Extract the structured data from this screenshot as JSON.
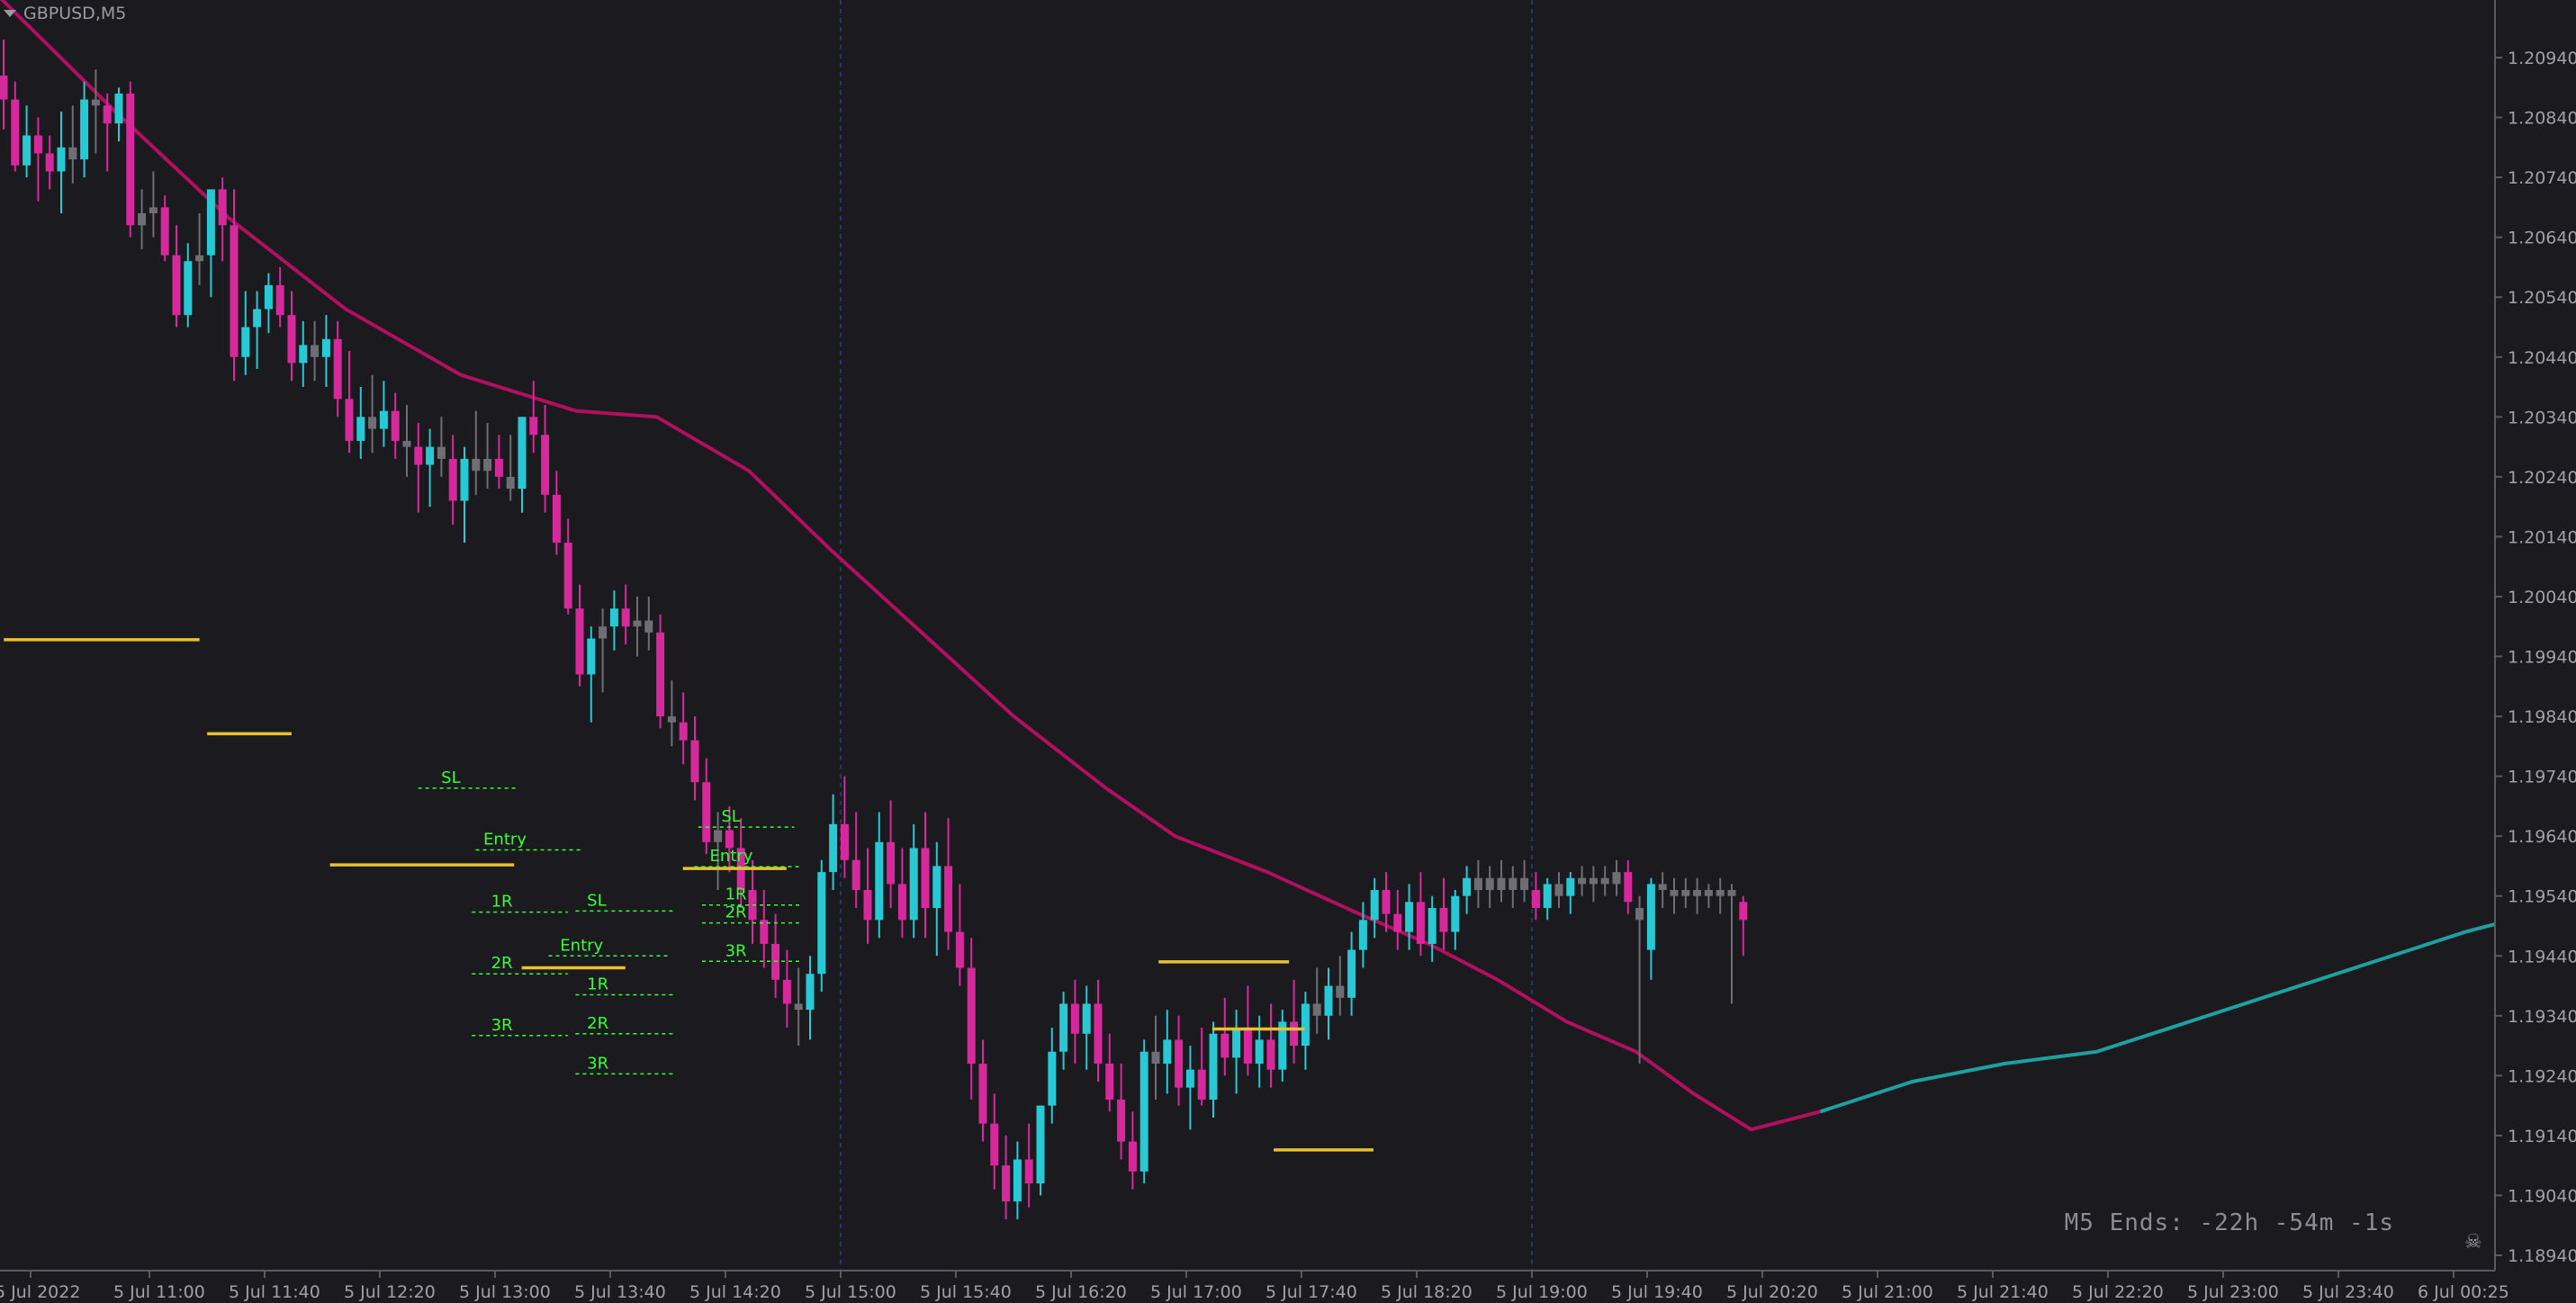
{
  "window": {
    "title": "GBPUSD,M5"
  },
  "countdown": {
    "text": "M5 Ends: -22h -54m -1s"
  },
  "colors": {
    "background": "#1b1a1f",
    "bull": "#28c8d4",
    "bear": "#d62a9c",
    "neutral": "#6e6e74",
    "ma_bear": "#b0105e",
    "ma_bull": "#1fa0a0",
    "level_line": "#e8c030",
    "label": "#33ff33",
    "separator": "#2a3c8c",
    "axis_text": "#a0a0a8"
  },
  "icons": {
    "title_menu": "triangle-down-icon",
    "corner": "skull-icon"
  },
  "chart_data": {
    "type": "candlestick",
    "symbol": "GBPUSD",
    "timeframe": "M5",
    "ylim": [
      1.1889,
      1.21
    ],
    "y_ticks": [
      "1.20940",
      "1.20840",
      "1.20740",
      "1.20640",
      "1.20540",
      "1.20440",
      "1.20340",
      "1.20240",
      "1.20140",
      "1.20040",
      "1.19940",
      "1.19840",
      "1.19740",
      "1.19640",
      "1.19540",
      "1.19440",
      "1.19340",
      "1.19240",
      "1.19140",
      "1.19040",
      "1.18940"
    ],
    "x_ticks": [
      "5 Jul 2022",
      "5 Jul 11:00",
      "5 Jul 11:40",
      "5 Jul 12:20",
      "5 Jul 13:00",
      "5 Jul 13:40",
      "5 Jul 14:20",
      "5 Jul 15:00",
      "5 Jul 15:40",
      "5 Jul 16:20",
      "5 Jul 17:00",
      "5 Jul 17:40",
      "5 Jul 18:20",
      "5 Jul 19:00",
      "5 Jul 19:40",
      "5 Jul 20:20",
      "5 Jul 21:00",
      "5 Jul 21:40",
      "5 Jul 22:20",
      "5 Jul 23:00",
      "5 Jul 23:40",
      "6 Jul 00:25"
    ],
    "session_separators": [
      "5 Jul 15:00",
      "5 Jul 19:00"
    ],
    "moving_average": [
      [
        0,
        1.2104
      ],
      [
        10,
        1.2085
      ],
      [
        20,
        1.2067
      ],
      [
        30,
        1.2052
      ],
      [
        40,
        1.2041
      ],
      [
        50,
        1.2035
      ],
      [
        57,
        1.2034
      ],
      [
        65,
        1.2025
      ],
      [
        72,
        1.2012
      ],
      [
        80,
        1.1998
      ],
      [
        88,
        1.1984
      ],
      [
        96,
        1.1972
      ],
      [
        102,
        1.1964
      ],
      [
        110,
        1.1958
      ],
      [
        118,
        1.1951
      ],
      [
        124,
        1.1946
      ],
      [
        130,
        1.194
      ],
      [
        136,
        1.1933
      ],
      [
        142,
        1.1928
      ],
      [
        147,
        1.1921
      ],
      [
        152,
        1.1915
      ],
      [
        158,
        1.1918
      ],
      [
        166,
        1.1923
      ],
      [
        174,
        1.1926
      ],
      [
        182,
        1.1928
      ],
      [
        190,
        1.1933
      ],
      [
        198,
        1.1938
      ],
      [
        206,
        1.1943
      ],
      [
        214,
        1.1948
      ],
      [
        222,
        1.1952
      ],
      [
        230,
        1.1955
      ],
      [
        236,
        1.1957
      ],
      [
        244,
        1.1957
      ],
      [
        252,
        1.1956
      ]
    ],
    "candles": [
      [
        1.2091,
        1.2097,
        1.2082,
        1.2087
      ],
      [
        1.2087,
        1.209,
        1.2075,
        1.2076
      ],
      [
        1.2076,
        1.2086,
        1.2074,
        1.2081
      ],
      [
        1.2081,
        1.2084,
        1.207,
        1.2078
      ],
      [
        1.2078,
        1.2081,
        1.2072,
        1.2075
      ],
      [
        1.2075,
        1.2085,
        1.2068,
        1.2079
      ],
      [
        1.2079,
        1.2086,
        1.2073,
        1.2077
      ],
      [
        1.2077,
        1.209,
        1.2074,
        1.2087
      ],
      [
        1.2087,
        1.2092,
        1.2078,
        1.2086
      ],
      [
        1.2086,
        1.2088,
        1.2075,
        1.2083
      ],
      [
        1.2083,
        1.2089,
        1.208,
        1.2088
      ],
      [
        1.2088,
        1.209,
        1.2064,
        1.2066
      ],
      [
        1.2066,
        1.2072,
        1.2062,
        1.2068
      ],
      [
        1.2068,
        1.2075,
        1.2064,
        1.2069
      ],
      [
        1.2069,
        1.2071,
        1.206,
        1.2061
      ],
      [
        1.2061,
        1.2066,
        1.2049,
        1.2051
      ],
      [
        1.2051,
        1.2063,
        1.2049,
        1.206
      ],
      [
        1.206,
        1.2068,
        1.2056,
        1.2061
      ],
      [
        1.2061,
        1.2071,
        1.2054,
        1.2072
      ],
      [
        1.2072,
        1.2074,
        1.206,
        1.2066
      ],
      [
        1.2066,
        1.2072,
        1.204,
        1.2044
      ],
      [
        1.2044,
        1.2055,
        1.2041,
        1.2049
      ],
      [
        1.2049,
        1.2055,
        1.2042,
        1.2052
      ],
      [
        1.2052,
        1.2058,
        1.2048,
        1.2056
      ],
      [
        1.2056,
        1.2059,
        1.2049,
        1.2051
      ],
      [
        1.2051,
        1.2055,
        1.204,
        1.2043
      ],
      [
        1.2043,
        1.205,
        1.2039,
        1.2046
      ],
      [
        1.2046,
        1.205,
        1.204,
        1.2044
      ],
      [
        1.2044,
        1.2051,
        1.2039,
        1.2047
      ],
      [
        1.2047,
        1.205,
        1.2034,
        1.2037
      ],
      [
        1.2037,
        1.2045,
        1.2028,
        1.203
      ],
      [
        1.203,
        1.2039,
        1.2027,
        1.2034
      ],
      [
        1.2034,
        1.2041,
        1.2028,
        1.2032
      ],
      [
        1.2032,
        1.204,
        1.2029,
        1.2035
      ],
      [
        1.2035,
        1.2038,
        1.2027,
        1.203
      ],
      [
        1.203,
        1.2036,
        1.2024,
        1.2029
      ],
      [
        1.2029,
        1.2033,
        1.2018,
        1.2026
      ],
      [
        1.2026,
        1.2032,
        1.2019,
        1.2029
      ],
      [
        1.2029,
        1.2034,
        1.2024,
        1.2027
      ],
      [
        1.2027,
        1.2031,
        1.2016,
        1.202
      ],
      [
        1.202,
        1.2029,
        1.2013,
        1.2027
      ],
      [
        1.2027,
        1.2035,
        1.2021,
        1.2025
      ],
      [
        1.2025,
        1.2033,
        1.2022,
        1.2027
      ],
      [
        1.2027,
        1.2031,
        1.2022,
        1.2024
      ],
      [
        1.2024,
        1.2031,
        1.202,
        1.2022
      ],
      [
        1.2022,
        1.2033,
        1.2018,
        1.2034
      ],
      [
        1.2034,
        1.204,
        1.2028,
        1.2031
      ],
      [
        1.2031,
        1.2036,
        1.2018,
        1.2021
      ],
      [
        1.2021,
        1.2025,
        1.2011,
        1.2013
      ],
      [
        1.2013,
        1.2017,
        1.2001,
        1.2002
      ],
      [
        1.2002,
        1.2006,
        1.1989,
        1.1991
      ],
      [
        1.1991,
        1.1999,
        1.1983,
        1.1997
      ],
      [
        1.1997,
        1.2002,
        1.1988,
        1.1999
      ],
      [
        1.1999,
        1.2005,
        1.1995,
        1.2002
      ],
      [
        1.2002,
        1.2006,
        1.1996,
        1.1999
      ],
      [
        1.1999,
        1.2004,
        1.1994,
        1.2
      ],
      [
        1.2,
        1.2004,
        1.1995,
        1.1998
      ],
      [
        1.1998,
        1.2001,
        1.1982,
        1.1984
      ],
      [
        1.1984,
        1.199,
        1.1979,
        1.1983
      ],
      [
        1.1983,
        1.1988,
        1.1976,
        1.198
      ],
      [
        1.198,
        1.1984,
        1.197,
        1.1973
      ],
      [
        1.1973,
        1.1977,
        1.1961,
        1.1963
      ],
      [
        1.1963,
        1.1968,
        1.1955,
        1.1965
      ],
      [
        1.1965,
        1.1969,
        1.1958,
        1.1962
      ],
      [
        1.1962,
        1.1967,
        1.1952,
        1.1955
      ],
      [
        1.1955,
        1.196,
        1.1946,
        1.195
      ],
      [
        1.195,
        1.1955,
        1.1942,
        1.1946
      ],
      [
        1.1946,
        1.1951,
        1.1937,
        1.194
      ],
      [
        1.194,
        1.1945,
        1.1932,
        1.1936
      ],
      [
        1.1936,
        1.1942,
        1.1929,
        1.1935
      ],
      [
        1.1935,
        1.1944,
        1.193,
        1.1941
      ],
      [
        1.1941,
        1.196,
        1.1938,
        1.1958
      ],
      [
        1.1958,
        1.1971,
        1.1955,
        1.1966
      ],
      [
        1.1966,
        1.1974,
        1.1957,
        1.196
      ],
      [
        1.196,
        1.1968,
        1.1952,
        1.1955
      ],
      [
        1.1955,
        1.1962,
        1.1946,
        1.195
      ],
      [
        1.195,
        1.1968,
        1.1947,
        1.1963
      ],
      [
        1.1963,
        1.197,
        1.1952,
        1.1956
      ],
      [
        1.1956,
        1.1962,
        1.1947,
        1.195
      ],
      [
        1.195,
        1.1966,
        1.1947,
        1.1962
      ],
      [
        1.1962,
        1.1968,
        1.1947,
        1.1952
      ],
      [
        1.1952,
        1.1963,
        1.1944,
        1.1959
      ],
      [
        1.1959,
        1.1967,
        1.1945,
        1.1948
      ],
      [
        1.1948,
        1.1956,
        1.1939,
        1.1942
      ],
      [
        1.1942,
        1.1947,
        1.192,
        1.1926
      ],
      [
        1.1926,
        1.193,
        1.1913,
        1.1916
      ],
      [
        1.1916,
        1.1921,
        1.1905,
        1.1909
      ],
      [
        1.1909,
        1.1914,
        1.19,
        1.1903
      ],
      [
        1.1903,
        1.1913,
        1.19,
        1.191
      ],
      [
        1.191,
        1.1916,
        1.1902,
        1.1906
      ],
      [
        1.1906,
        1.1919,
        1.1904,
        1.1919
      ],
      [
        1.1919,
        1.1932,
        1.1916,
        1.1928
      ],
      [
        1.1928,
        1.1938,
        1.1925,
        1.1936
      ],
      [
        1.1936,
        1.194,
        1.1926,
        1.1931
      ],
      [
        1.1931,
        1.1939,
        1.1925,
        1.1936
      ],
      [
        1.1936,
        1.194,
        1.1923,
        1.1926
      ],
      [
        1.1926,
        1.1931,
        1.1918,
        1.192
      ],
      [
        1.192,
        1.1926,
        1.191,
        1.1913
      ],
      [
        1.1913,
        1.1918,
        1.1905,
        1.1908
      ],
      [
        1.1908,
        1.193,
        1.1906,
        1.1928
      ],
      [
        1.1928,
        1.1934,
        1.192,
        1.1926
      ],
      [
        1.1926,
        1.1935,
        1.1921,
        1.193
      ],
      [
        1.193,
        1.1934,
        1.1919,
        1.1922
      ],
      [
        1.1922,
        1.1929,
        1.1915,
        1.1925
      ],
      [
        1.1925,
        1.1932,
        1.1919,
        1.192
      ],
      [
        1.192,
        1.1933,
        1.1917,
        1.1931
      ],
      [
        1.1931,
        1.1937,
        1.1924,
        1.1927
      ],
      [
        1.1927,
        1.1935,
        1.1921,
        1.1932
      ],
      [
        1.1932,
        1.1939,
        1.1924,
        1.1926
      ],
      [
        1.1926,
        1.1934,
        1.1922,
        1.193
      ],
      [
        1.193,
        1.1936,
        1.1922,
        1.1925
      ],
      [
        1.1925,
        1.1935,
        1.1923,
        1.1933
      ],
      [
        1.1933,
        1.194,
        1.1926,
        1.1929
      ],
      [
        1.1929,
        1.1938,
        1.1925,
        1.1936
      ],
      [
        1.1936,
        1.1942,
        1.1931,
        1.1934
      ],
      [
        1.1934,
        1.1942,
        1.193,
        1.1939
      ],
      [
        1.1939,
        1.1944,
        1.1934,
        1.1937
      ],
      [
        1.1937,
        1.1948,
        1.1934,
        1.1945
      ],
      [
        1.1945,
        1.1953,
        1.1942,
        1.195
      ],
      [
        1.195,
        1.1957,
        1.1947,
        1.1955
      ],
      [
        1.1955,
        1.1958,
        1.1948,
        1.1951
      ],
      [
        1.1951,
        1.1955,
        1.1945,
        1.1948
      ],
      [
        1.1948,
        1.1956,
        1.1945,
        1.1953
      ],
      [
        1.1953,
        1.1958,
        1.1944,
        1.1946
      ],
      [
        1.1946,
        1.1954,
        1.1943,
        1.1952
      ],
      [
        1.1952,
        1.1957,
        1.1945,
        1.1948
      ],
      [
        1.1948,
        1.1955,
        1.1945,
        1.1954
      ],
      [
        1.1954,
        1.1959,
        1.1951,
        1.1957
      ],
      [
        1.1957,
        1.196,
        1.1952,
        1.1955
      ],
      [
        1.1955,
        1.1959,
        1.1952,
        1.1957
      ],
      [
        1.1957,
        1.196,
        1.1953,
        1.1955
      ],
      [
        1.1955,
        1.1959,
        1.1952,
        1.1957
      ],
      [
        1.1957,
        1.196,
        1.1953,
        1.1955
      ],
      [
        1.1955,
        1.1958,
        1.195,
        1.1952
      ],
      [
        1.1952,
        1.1957,
        1.195,
        1.1956
      ],
      [
        1.1956,
        1.1958,
        1.1952,
        1.1954
      ],
      [
        1.1954,
        1.1958,
        1.1951,
        1.1957
      ],
      [
        1.1957,
        1.1959,
        1.1954,
        1.1956
      ],
      [
        1.1956,
        1.1959,
        1.1953,
        1.1957
      ],
      [
        1.1957,
        1.1959,
        1.1954,
        1.1956
      ],
      [
        1.1956,
        1.196,
        1.1954,
        1.1958
      ],
      [
        1.1958,
        1.196,
        1.1951,
        1.1953
      ],
      [
        1.1952,
        1.1954,
        1.1926,
        1.195
      ],
      [
        1.1945,
        1.1957,
        1.194,
        1.1956
      ],
      [
        1.1956,
        1.1958,
        1.1952,
        1.1955
      ],
      [
        1.1955,
        1.1957,
        1.1951,
        1.1954
      ],
      [
        1.1954,
        1.1957,
        1.1952,
        1.1955
      ],
      [
        1.1955,
        1.1957,
        1.1951,
        1.1954
      ],
      [
        1.1954,
        1.1956,
        1.1952,
        1.1955
      ],
      [
        1.1955,
        1.1957,
        1.1951,
        1.1954
      ],
      [
        1.1954,
        1.1956,
        1.1936,
        1.1955
      ],
      [
        1.1953,
        1.1954,
        1.1944,
        1.195
      ]
    ],
    "level_marks": [
      {
        "price": 1.19968,
        "x0": 0.1,
        "x1": 5.2
      },
      {
        "price": 1.19811,
        "x0": 5.4,
        "x1": 7.6
      },
      {
        "price": 1.19592,
        "x0": 8.6,
        "x1": 13.4
      },
      {
        "price": 1.1942,
        "x0": 13.6,
        "x1": 16.3
      },
      {
        "price": 1.19586,
        "x0": 17.8,
        "x1": 20.5
      },
      {
        "price": 1.1943,
        "x0": 30.2,
        "x1": 33.6
      },
      {
        "price": 1.19318,
        "x0": 31.6,
        "x1": 34.0
      },
      {
        "price": 1.19116,
        "x0": 33.2,
        "x1": 35.8
      }
    ],
    "trade_labels": [
      {
        "text": "SL",
        "price": 1.19735,
        "x": 11.5,
        "dash": [
          10.9,
          13.5
        ]
      },
      {
        "text": "Entry",
        "price": 1.19632,
        "x": 12.6,
        "dash": [
          12.4,
          15.2
        ]
      },
      {
        "text": "1R",
        "price": 1.19528,
        "x": 12.8,
        "dash": [
          12.3,
          14.8
        ]
      },
      {
        "text": "2R",
        "price": 1.19425,
        "x": 12.8,
        "dash": [
          12.3,
          14.8
        ]
      },
      {
        "text": "3R",
        "price": 1.19322,
        "x": 12.8,
        "dash": [
          12.3,
          14.8
        ]
      },
      {
        "text": "SL",
        "price": 1.1953,
        "x": 15.3,
        "dash": [
          15.0,
          17.6
        ]
      },
      {
        "text": "Entry",
        "price": 1.19455,
        "x": 14.6,
        "dash": [
          14.3,
          17.4
        ]
      },
      {
        "text": "1R",
        "price": 1.1939,
        "x": 15.3,
        "dash": [
          15.0,
          17.6
        ]
      },
      {
        "text": "2R",
        "price": 1.19325,
        "x": 15.3,
        "dash": [
          15.0,
          17.6
        ]
      },
      {
        "text": "3R",
        "price": 1.19258,
        "x": 15.3,
        "dash": [
          15.0,
          17.6
        ]
      },
      {
        "text": "SL",
        "price": 1.1967,
        "x": 18.8,
        "dash": [
          18.2,
          20.7
        ]
      },
      {
        "text": "Entry",
        "price": 1.19604,
        "x": 18.5,
        "dash": [
          18.1,
          20.9
        ]
      },
      {
        "text": "1R",
        "price": 1.1954,
        "x": 18.9,
        "dash": [
          18.3,
          20.9
        ]
      },
      {
        "text": "2R",
        "price": 1.1951,
        "x": 18.9,
        "dash": [
          18.3,
          20.9
        ]
      },
      {
        "text": "3R",
        "price": 1.19446,
        "x": 18.9,
        "dash": [
          18.3,
          20.9
        ]
      }
    ]
  }
}
